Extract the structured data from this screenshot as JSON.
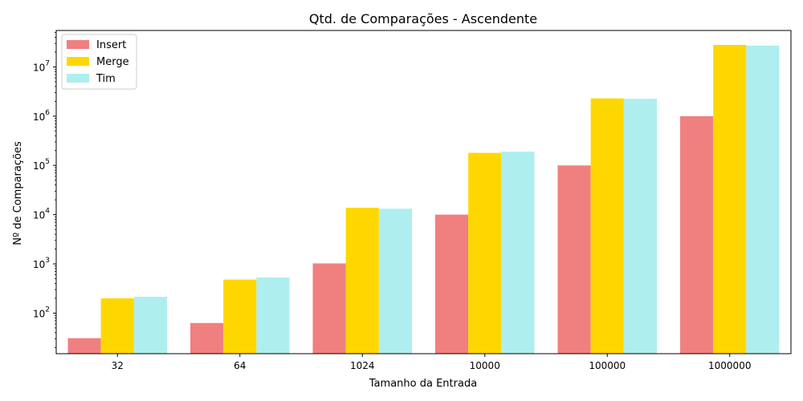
{
  "chart_data": {
    "type": "bar",
    "title": "Qtd. de Comparações - Ascendente",
    "xlabel": "Tamanho da Entrada",
    "ylabel": "Nº de Comparações",
    "yscale": "log",
    "ylim": [
      15,
      55000000
    ],
    "yticks": [
      {
        "value": 100,
        "base": "10",
        "exp": "2"
      },
      {
        "value": 1000,
        "base": "10",
        "exp": "3"
      },
      {
        "value": 10000,
        "base": "10",
        "exp": "4"
      },
      {
        "value": 100000,
        "base": "10",
        "exp": "5"
      },
      {
        "value": 1000000,
        "base": "10",
        "exp": "6"
      },
      {
        "value": 10000000,
        "base": "10",
        "exp": "7"
      }
    ],
    "categories": [
      "32",
      "64",
      "1024",
      "10000",
      "100000",
      "1000000"
    ],
    "series": [
      {
        "name": "Insert",
        "color": "#f08080",
        "values": [
          31,
          63,
          1023,
          9999,
          99999,
          999999
        ]
      },
      {
        "name": "Merge",
        "color": "#ffd700",
        "values": [
          200,
          480,
          13800,
          180000,
          2300000,
          28000000
        ]
      },
      {
        "name": "Tim",
        "color": "#afeeee",
        "values": [
          215,
          530,
          13200,
          190000,
          2250000,
          27000000
        ]
      }
    ],
    "legend_position": "top-left",
    "grid": false
  }
}
